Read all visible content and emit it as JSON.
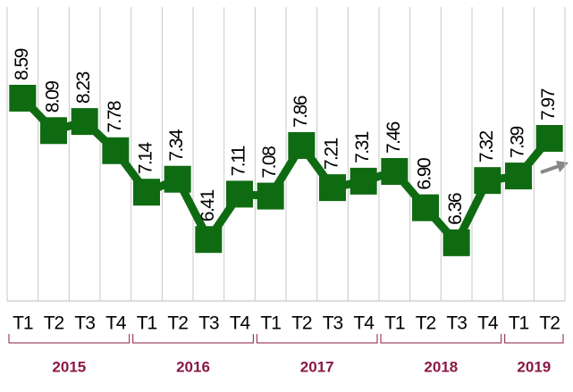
{
  "chart_data": {
    "type": "line",
    "categories": [
      "T1",
      "T2",
      "T3",
      "T4",
      "T1",
      "T2",
      "T3",
      "T4",
      "T1",
      "T2",
      "T3",
      "T4",
      "T1",
      "T2",
      "T3",
      "T4",
      "T1",
      "T2"
    ],
    "years": [
      "2015",
      "2015",
      "2015",
      "2015",
      "2016",
      "2016",
      "2016",
      "2016",
      "2017",
      "2017",
      "2017",
      "2017",
      "2018",
      "2018",
      "2018",
      "2018",
      "2019",
      "2019"
    ],
    "values": [
      8.59,
      8.09,
      8.23,
      7.78,
      7.14,
      7.34,
      6.41,
      7.11,
      7.08,
      7.86,
      7.21,
      7.31,
      7.46,
      6.9,
      6.36,
      7.32,
      7.39,
      7.97
    ],
    "value_labels": [
      "8.59",
      "8.09",
      "8.23",
      "7.78",
      "7.14",
      "7.34",
      "6.41",
      "7.11",
      "7.08",
      "7.86",
      "7.21",
      "7.31",
      "7.46",
      "6.90",
      "6.36",
      "7.32",
      "7.39",
      "7.97"
    ],
    "color": "#0f6b12"
  }
}
